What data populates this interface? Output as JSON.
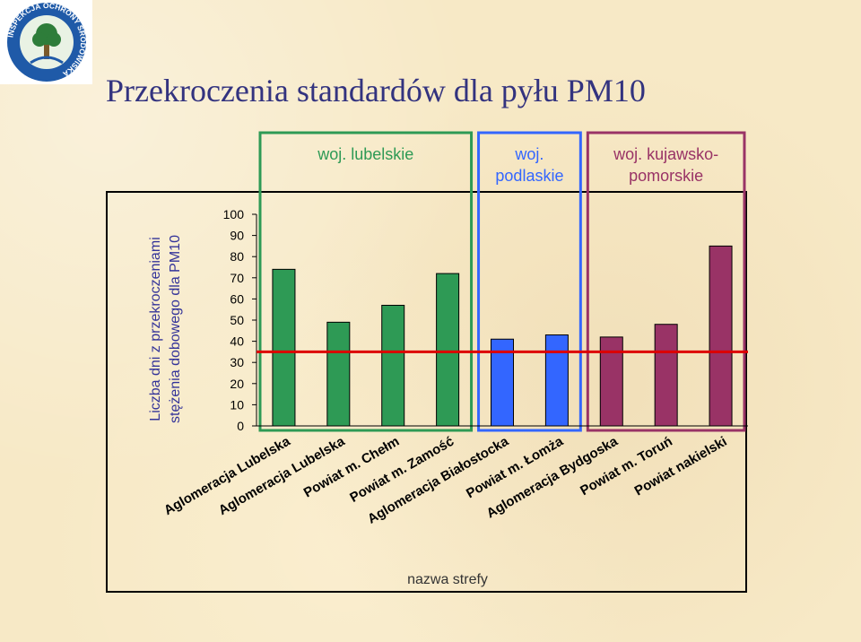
{
  "logo": {
    "text": "INSPEKCJA OCHRONY ŚRODOWISKA",
    "colors": {
      "ring": "#1f5aa8",
      "fill": "#2e7d3a",
      "text": "#ffffff"
    }
  },
  "page_title": "Przekroczenia standardów dla pyłu PM10",
  "chart_data": {
    "type": "bar",
    "ylabel_lines": [
      "Liczba dni z przekroczeniami",
      "stężenia dobowego dla PM10"
    ],
    "xlabel": "nazwa strefy",
    "ylim": [
      0,
      100
    ],
    "yticks": [
      100,
      90,
      80,
      70,
      60,
      50,
      40,
      30,
      20,
      10,
      0
    ],
    "categories": [
      "Aglomeracja Lubelska",
      "Aglomeracja Lubelska",
      "Powiat m. Chełm",
      "Powiat m. Zamość",
      "Aglomeracja Białostocka",
      "Powiat m. Łomża",
      "Aglomeracja Bydgoska",
      "Powiat m. Toruń",
      "Powiat nakielski"
    ],
    "values": [
      74,
      49,
      57,
      72,
      41,
      43,
      42,
      48,
      85
    ],
    "bar_colors": [
      "#2e9a55",
      "#2e9a55",
      "#2e9a55",
      "#2e9a55",
      "#3366ff",
      "#3366ff",
      "#993366",
      "#993366",
      "#993366"
    ],
    "threshold": {
      "value": 35,
      "color": "#dd0000"
    },
    "groups": [
      {
        "lines": [
          "woj. lubelskie"
        ],
        "color": "#2e9a55",
        "from": 0,
        "to": 3
      },
      {
        "lines": [
          "woj.",
          "podlaskie"
        ],
        "color": "#3366ff",
        "from": 4,
        "to": 5
      },
      {
        "lines": [
          "woj. kujawsko-",
          "pomorskie"
        ],
        "color": "#993366",
        "from": 6,
        "to": 8
      }
    ],
    "grid": false,
    "legend": "none"
  }
}
